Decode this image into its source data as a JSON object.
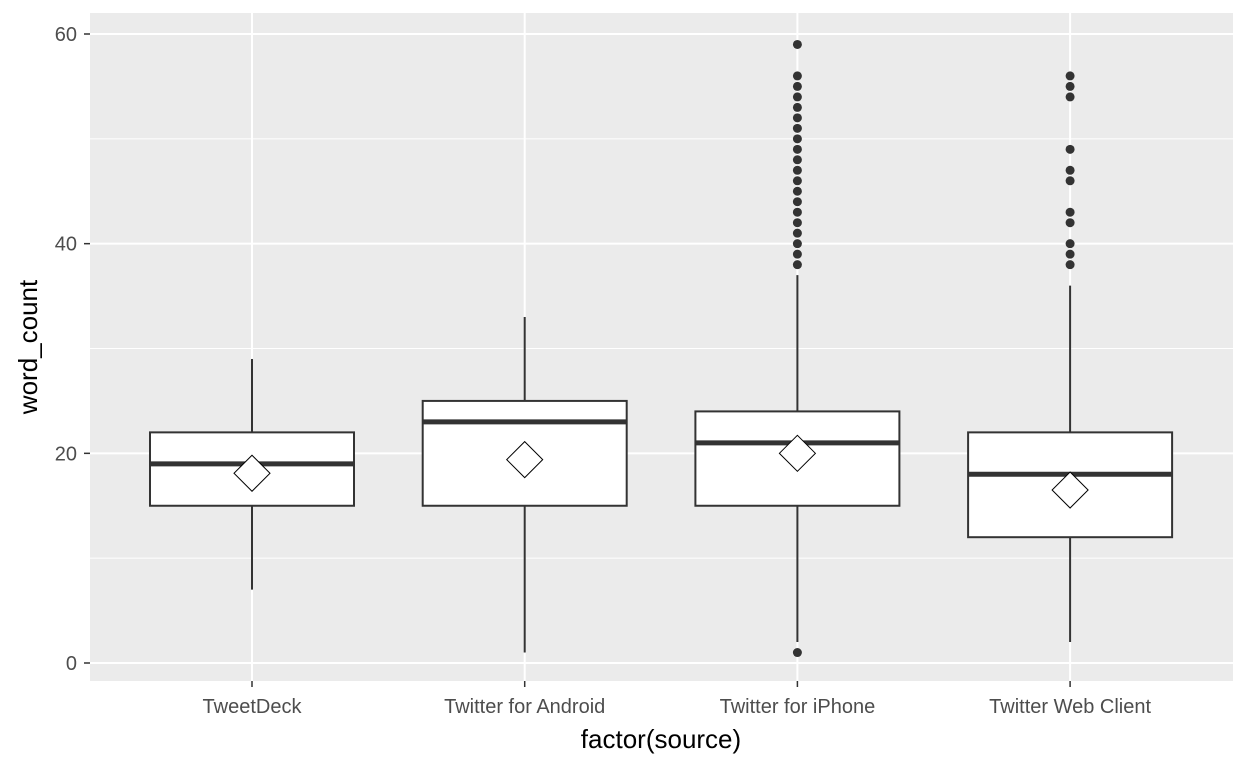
{
  "chart_data": {
    "type": "boxplot",
    "xlabel": "factor(source)",
    "ylabel": "word_count",
    "ylim": [
      -1.8,
      62
    ],
    "yticks": [
      0,
      20,
      40,
      60
    ],
    "grid": true,
    "categories": [
      "TweetDeck",
      "Twitter for Android",
      "Twitter for iPhone",
      "Twitter Web Client"
    ],
    "boxes": [
      {
        "category": "TweetDeck",
        "whisker_low": 7,
        "q1": 15,
        "median": 19,
        "q3": 22,
        "whisker_high": 29,
        "mean": 18.1,
        "outliers": []
      },
      {
        "category": "Twitter for Android",
        "whisker_low": 1,
        "q1": 15,
        "median": 23,
        "q3": 25,
        "whisker_high": 33,
        "mean": 19.4,
        "outliers": []
      },
      {
        "category": "Twitter for iPhone",
        "whisker_low": 2,
        "q1": 15,
        "median": 21,
        "q3": 24,
        "whisker_high": 37,
        "mean": 20.0,
        "outliers": [
          1,
          38,
          39,
          40,
          41,
          42,
          43,
          44,
          45,
          46,
          47,
          48,
          49,
          50,
          51,
          52,
          53,
          54,
          55,
          56,
          59
        ]
      },
      {
        "category": "Twitter Web Client",
        "whisker_low": 2,
        "q1": 12,
        "median": 18,
        "q3": 22,
        "whisker_high": 36,
        "mean": 16.5,
        "outliers": [
          38,
          39,
          40,
          42,
          43,
          46,
          47,
          49,
          54,
          55,
          56
        ]
      }
    ],
    "colors": {
      "panel": "#ebebeb",
      "grid": "#ffffff",
      "box_fill": "#ffffff",
      "stroke": "#333333"
    }
  }
}
